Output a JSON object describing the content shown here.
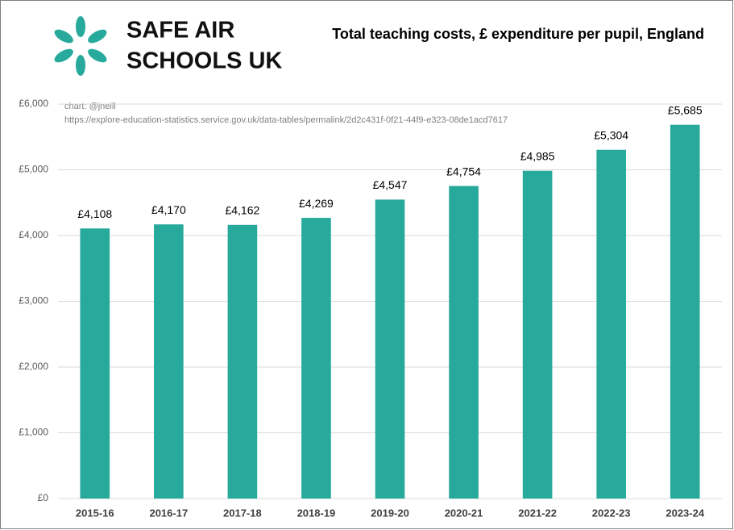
{
  "brand": {
    "lines": [
      "SAFE AIR",
      "SCHOOLS UK"
    ]
  },
  "chart_data": {
    "type": "bar",
    "title": "Total teaching costs, £ expenditure per pupil, England",
    "notes": [
      "chart: @jneill",
      "https://explore-education-statistics.service.gov.uk/data-tables/permalink/2d2c431f-0f21-44f9-e323-08de1acd7617"
    ],
    "categories": [
      "2015-16",
      "2016-17",
      "2017-18",
      "2018-19",
      "2019-20",
      "2020-21",
      "2021-22",
      "2022-23",
      "2023-24"
    ],
    "values": [
      4108,
      4170,
      4162,
      4269,
      4547,
      4754,
      4985,
      5304,
      5685
    ],
    "value_labels": [
      "£4,108",
      "£4,170",
      "£4,162",
      "£4,269",
      "£4,547",
      "£4,754",
      "£4,985",
      "£5,304",
      "£5,685"
    ],
    "color": "#27a99c",
    "ylim": [
      0,
      6000
    ],
    "yticks": [
      {
        "value": 0,
        "label": "£0"
      },
      {
        "value": 1000,
        "label": "£1,000"
      },
      {
        "value": 2000,
        "label": "£2,000"
      },
      {
        "value": 3000,
        "label": "£3,000"
      },
      {
        "value": 4000,
        "label": "£4,000"
      },
      {
        "value": 5000,
        "label": "£5,000"
      },
      {
        "value": 6000,
        "label": "£6,000"
      }
    ],
    "grid": true
  }
}
